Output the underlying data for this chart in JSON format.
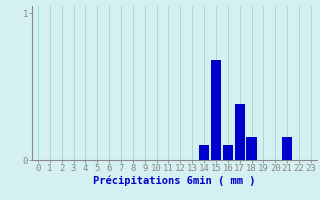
{
  "categories": [
    0,
    1,
    2,
    3,
    4,
    5,
    6,
    7,
    8,
    9,
    10,
    11,
    12,
    13,
    14,
    15,
    16,
    17,
    18,
    19,
    20,
    21,
    22,
    23
  ],
  "values": [
    0,
    0,
    0,
    0,
    0,
    0,
    0,
    0,
    0,
    0,
    0,
    0,
    0,
    0,
    0.1,
    0.68,
    0.1,
    0.38,
    0.16,
    0,
    0,
    0.16,
    0,
    0
  ],
  "bar_color": "#0000cc",
  "background_color": "#d4f0f0",
  "grid_color": "#a8d8d8",
  "axis_color": "#888888",
  "text_color": "#0000cc",
  "xlabel": "Précipitations 6min ( mm )",
  "ylim": [
    0,
    1.05
  ],
  "xlim": [
    -0.5,
    23.5
  ],
  "yticks": [
    0,
    1
  ],
  "ytick_labels": [
    "0",
    "1"
  ],
  "xticks": [
    0,
    1,
    2,
    3,
    4,
    5,
    6,
    7,
    8,
    9,
    10,
    11,
    12,
    13,
    14,
    15,
    16,
    17,
    18,
    19,
    20,
    21,
    22,
    23
  ],
  "bar_width": 0.85,
  "xlabel_fontsize": 7.5,
  "tick_fontsize": 6.5
}
